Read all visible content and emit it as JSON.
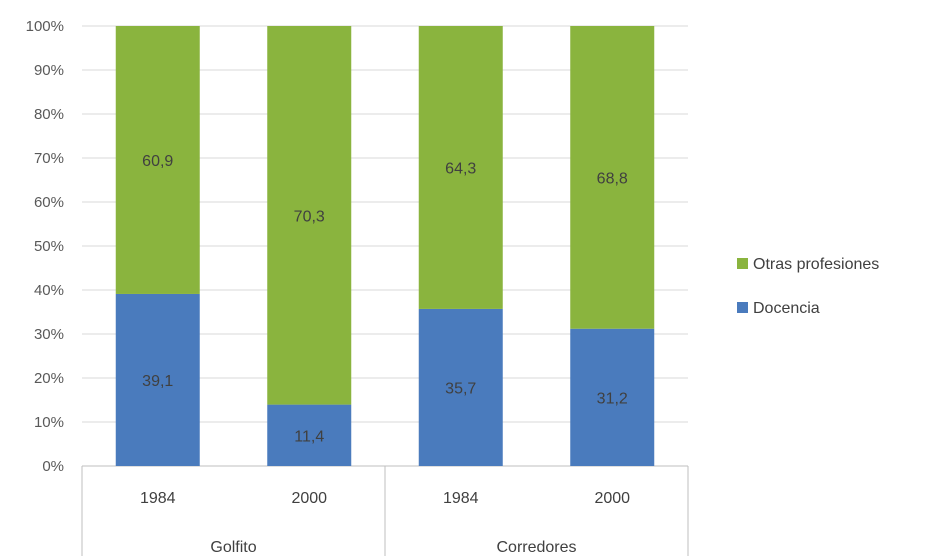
{
  "chart_data": {
    "type": "bar",
    "stacked": true,
    "percent_stacked": true,
    "title": "",
    "xlabel": "",
    "ylabel": "",
    "ylim": [
      0,
      100
    ],
    "y_ticks": [
      "0%",
      "10%",
      "20%",
      "30%",
      "40%",
      "50%",
      "60%",
      "70%",
      "80%",
      "90%",
      "100%"
    ],
    "groups": [
      {
        "label": "Golfito",
        "categories": [
          "1984",
          "2000"
        ]
      },
      {
        "label": "Corredores",
        "categories": [
          "1984",
          "2000"
        ]
      }
    ],
    "categories": [
      "1984",
      "2000",
      "1984",
      "2000"
    ],
    "series": [
      {
        "name": "Docencia",
        "color": "#4a7bbd",
        "values": [
          39.1,
          11.4,
          35.7,
          31.2
        ],
        "labels": [
          "39,1",
          "11,4",
          "35,7",
          "31,2"
        ]
      },
      {
        "name": "Otras profesiones",
        "color": "#8ab43e",
        "values": [
          60.9,
          70.3,
          64.3,
          68.8
        ],
        "labels": [
          "60,9",
          "70,3",
          "64,3",
          "68,8"
        ]
      }
    ],
    "legend": {
      "position": "right",
      "items": [
        {
          "name": "Otras profesiones",
          "color": "#8ab43e"
        },
        {
          "name": "Docencia",
          "color": "#4a7bbd"
        }
      ]
    },
    "grid": true
  }
}
